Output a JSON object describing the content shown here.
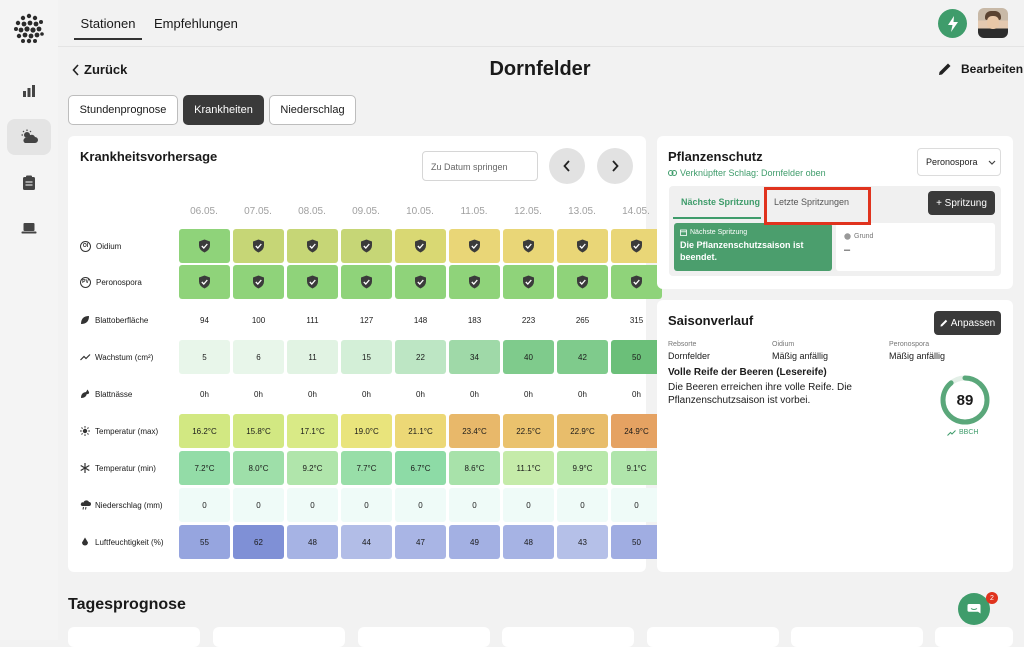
{
  "nav": {
    "tabs": [
      "Stationen",
      "Empfehlungen"
    ],
    "active_tab": "Stationen"
  },
  "header": {
    "back_label": "Zurück",
    "title": "Dornfelder",
    "edit_label": "Bearbeiten"
  },
  "view_tabs": [
    "Stundenprognose",
    "Krankheiten",
    "Niederschlag"
  ],
  "active_view": "Krankheiten",
  "disease_card": {
    "title": "Krankheitsvorhersage",
    "date_jump_placeholder": "Zu Datum springen",
    "dates": [
      "06.05.",
      "07.05.",
      "08.05.",
      "09.05.",
      "10.05.",
      "11.05.",
      "12.05.",
      "13.05.",
      "14.05."
    ],
    "rows": [
      {
        "label": "Oidium",
        "icon": "badge-oi",
        "badge": "OI",
        "kind": "shield",
        "values": [
          "",
          "",
          "",
          "",
          "",
          "",
          "",
          "",
          ""
        ],
        "colors": [
          "#8fd37a",
          "#c6d676",
          "#c6d676",
          "#c6d676",
          "#d9d873",
          "#e9d677",
          "#e9d677",
          "#e9d677",
          "#e9d677"
        ]
      },
      {
        "label": "Peronospora",
        "icon": "badge-pv",
        "badge": "PV",
        "kind": "shield",
        "values": [
          "",
          "",
          "",
          "",
          "",
          "",
          "",
          "",
          ""
        ],
        "colors": [
          "#8fd37a",
          "#8fd37a",
          "#8fd37a",
          "#8fd37a",
          "#8fd37a",
          "#8fd37a",
          "#8fd37a",
          "#8fd37a",
          "#8fd37a"
        ]
      },
      {
        "label": "Blattoberfläche",
        "icon": "leaf-icon",
        "kind": "plain",
        "values": [
          "94",
          "100",
          "111",
          "127",
          "148",
          "183",
          "223",
          "265",
          "315"
        ],
        "colors": []
      },
      {
        "label": "Wachstum (cm²)",
        "icon": "trend-up-icon",
        "kind": "value",
        "values": [
          "5",
          "6",
          "11",
          "15",
          "22",
          "34",
          "40",
          "42",
          "50"
        ],
        "colors": [
          "#e8f6ea",
          "#e8f6ea",
          "#e1f3e3",
          "#d3efd7",
          "#bde6c4",
          "#9fd9a8",
          "#7fcb8c",
          "#7fcb8c",
          "#6bbf79"
        ]
      },
      {
        "label": "Blattnässe",
        "icon": "leaf-drop-icon",
        "kind": "plain",
        "values": [
          "0h",
          "0h",
          "0h",
          "0h",
          "0h",
          "0h",
          "0h",
          "0h",
          "0h"
        ],
        "colors": []
      },
      {
        "label": "Temperatur (max)",
        "icon": "sun-icon",
        "kind": "value",
        "values": [
          "16.2°C",
          "15.8°C",
          "17.1°C",
          "19.0°C",
          "21.1°C",
          "23.4°C",
          "22.5°C",
          "22.9°C",
          "24.9°C"
        ],
        "colors": [
          "#d2e882",
          "#d2e882",
          "#d9ea86",
          "#e9e47c",
          "#ecd876",
          "#e8b86a",
          "#eac26d",
          "#e8bd6b",
          "#e5a262"
        ]
      },
      {
        "label": "Temperatur (min)",
        "icon": "snowflake-icon",
        "kind": "value",
        "values": [
          "7.2°C",
          "8.0°C",
          "9.2°C",
          "7.7°C",
          "6.7°C",
          "8.6°C",
          "11.1°C",
          "9.9°C",
          "9.1°C"
        ],
        "colors": [
          "#93dca7",
          "#9edfa9",
          "#b0e5ab",
          "#98dea8",
          "#8ddba6",
          "#a8e2aa",
          "#c5eba9",
          "#b8e8aa",
          "#b0e5ab"
        ]
      },
      {
        "label": "Niederschlag (mm)",
        "icon": "rain-icon",
        "kind": "value",
        "values": [
          "0",
          "0",
          "0",
          "0",
          "0",
          "0",
          "0",
          "0",
          "0"
        ],
        "colors": [
          "#effbf8",
          "#effbf8",
          "#effbf8",
          "#effbf8",
          "#effbf8",
          "#effbf8",
          "#effbf8",
          "#effbf8",
          "#effbf8"
        ]
      },
      {
        "label": "Luftfeuchtigkeit (%)",
        "icon": "drop-icon",
        "kind": "value",
        "values": [
          "55",
          "62",
          "48",
          "44",
          "47",
          "49",
          "48",
          "43",
          "50"
        ],
        "colors": [
          "#96a5df",
          "#7f90d6",
          "#a6b3e4",
          "#b2bde7",
          "#a9b5e5",
          "#a3b0e3",
          "#a6b3e4",
          "#b5c0e8",
          "#a0ade2"
        ]
      }
    ]
  },
  "protection_card": {
    "title": "Pflanzenschutz",
    "linked": "Verknüpfter Schlag: Dornfelder oben",
    "dropdown_value": "Peronospora",
    "tabs": [
      "Nächste Spritzung",
      "Letzte Spritzungen"
    ],
    "active_tab": "Nächste Spritzung",
    "add_button": "+ Spritzung",
    "next_label": "Nächste Spritzung",
    "next_message": "Die Pflanzenschutzsaison ist beendet.",
    "reason_label": "Grund",
    "reason_value": "–"
  },
  "season_card": {
    "title": "Saisonverlauf",
    "adjust_button": "Anpassen",
    "meta": [
      {
        "key": "Rebsorte",
        "value": "Dornfelder"
      },
      {
        "key": "Oidium",
        "value": "Mäßig anfällig"
      },
      {
        "key": "Peronospora",
        "value": "Mäßig anfällig"
      }
    ],
    "stage_title": "Volle Reife der Beeren (Lesereife)",
    "stage_desc": "Die Beeren erreichen ihre volle Reife. Die Pflanzenschutzsaison ist vorbei.",
    "bbch_value": "89",
    "bbch_progress": 0.89,
    "bbch_label": "BBCH"
  },
  "section_title": "Tagesprognose",
  "chat_badge": "2",
  "colors": {
    "accent": "#3f9c6b",
    "dark_button": "#3a3a3a",
    "highlight": "#e0331e"
  }
}
